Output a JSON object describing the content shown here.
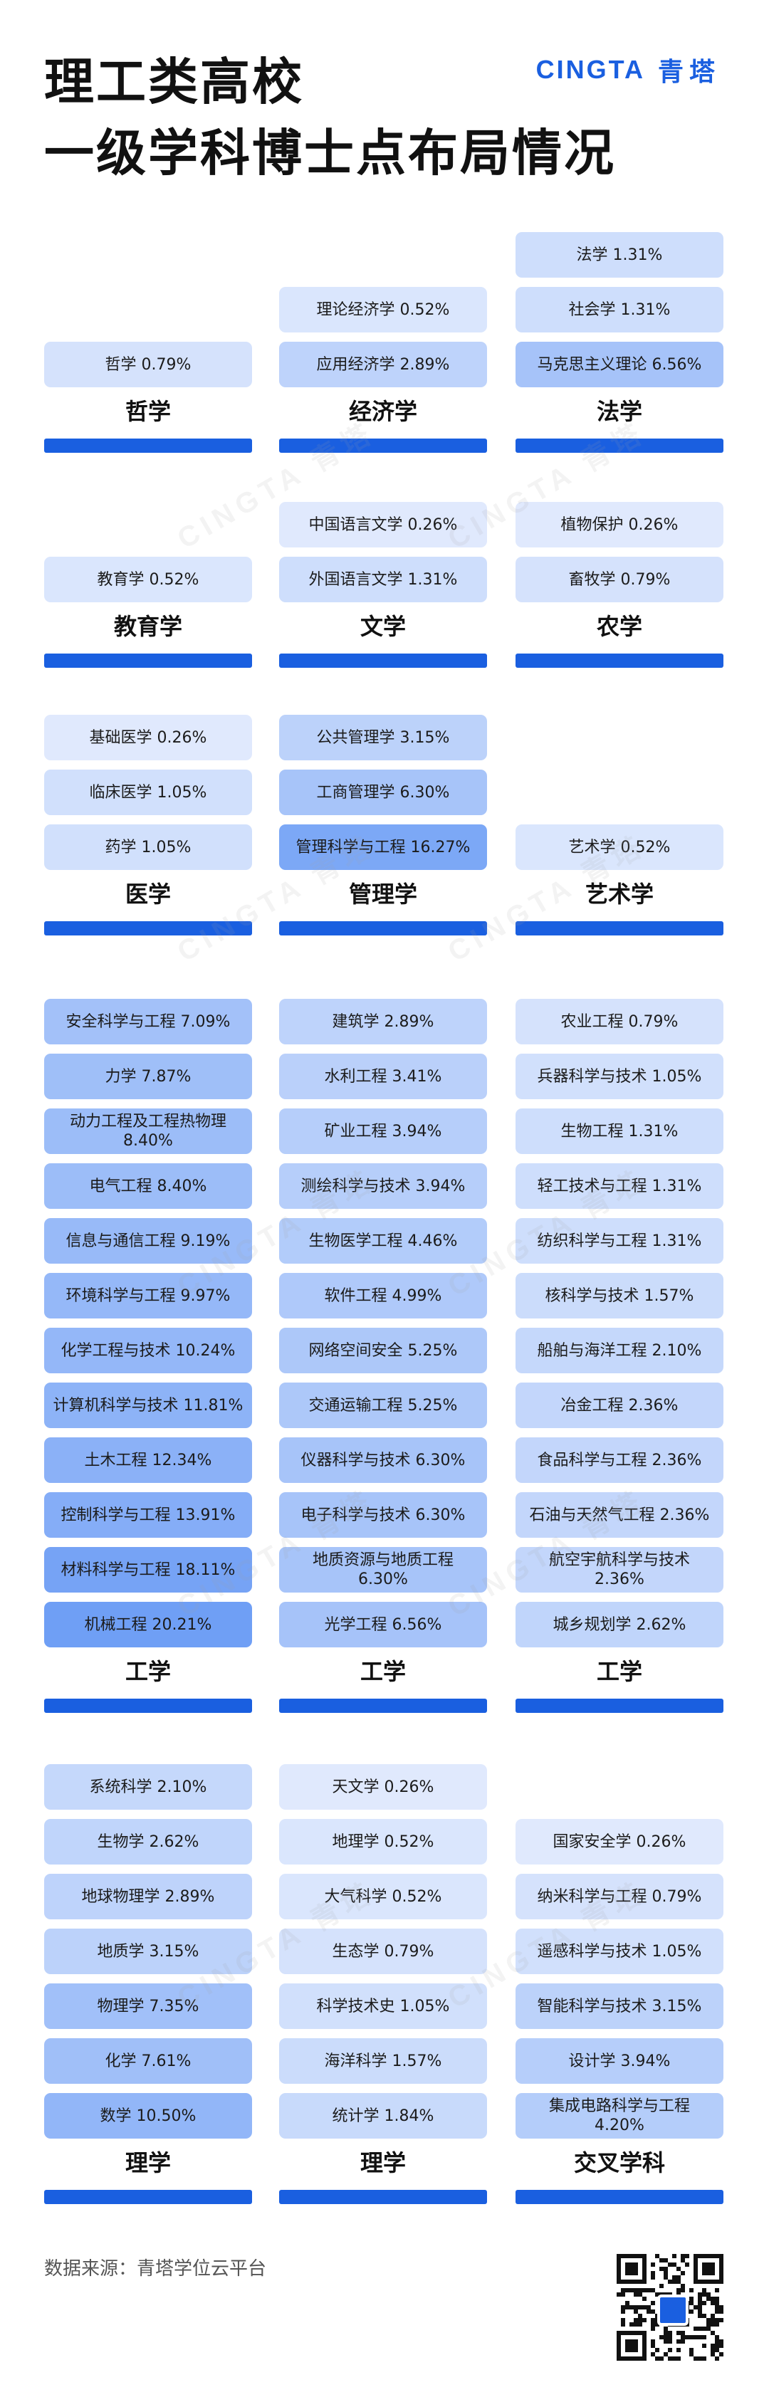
{
  "header": {
    "title_line1": "理工类高校",
    "title_line2": "一级学科博士点布局情况",
    "brand_en": "CINGTA",
    "brand_cn": "青塔",
    "watermark": "CINGTA 青塔"
  },
  "colors": {
    "accent": "#1a5fe0",
    "cell_lightest": "#eef3fe",
    "cell_darkest": "#6f9ff5"
  },
  "chart_data": {
    "type": "table",
    "title": "理工类高校 一级学科博士点布局情况",
    "value_unit": "%",
    "sections": [
      {
        "categories": [
          {
            "name": "哲学",
            "items": [
              {
                "label": "哲学 0.79%",
                "value": 0.79
              }
            ]
          },
          {
            "name": "经济学",
            "items": [
              {
                "label": "理论经济学 0.52%",
                "value": 0.52
              },
              {
                "label": "应用经济学 2.89%",
                "value": 2.89
              }
            ]
          },
          {
            "name": "法学",
            "items": [
              {
                "label": "法学 1.31%",
                "value": 1.31
              },
              {
                "label": "社会学 1.31%",
                "value": 1.31
              },
              {
                "label": "马克思主义理论 6.56%",
                "value": 6.56
              }
            ]
          }
        ]
      },
      {
        "categories": [
          {
            "name": "教育学",
            "items": [
              {
                "label": "教育学 0.52%",
                "value": 0.52
              }
            ]
          },
          {
            "name": "文学",
            "items": [
              {
                "label": "中国语言文学 0.26%",
                "value": 0.26
              },
              {
                "label": "外国语言文学 1.31%",
                "value": 1.31
              }
            ]
          },
          {
            "name": "农学",
            "items": [
              {
                "label": "植物保护 0.26%",
                "value": 0.26
              },
              {
                "label": "畜牧学 0.79%",
                "value": 0.79
              }
            ]
          }
        ]
      },
      {
        "categories": [
          {
            "name": "医学",
            "items": [
              {
                "label": "基础医学 0.26%",
                "value": 0.26
              },
              {
                "label": "临床医学 1.05%",
                "value": 1.05
              },
              {
                "label": "药学 1.05%",
                "value": 1.05
              }
            ]
          },
          {
            "name": "管理学",
            "items": [
              {
                "label": "公共管理学 3.15%",
                "value": 3.15
              },
              {
                "label": "工商管理学 6.30%",
                "value": 6.3
              },
              {
                "label": "管理科学与工程 16.27%",
                "value": 16.27
              }
            ]
          },
          {
            "name": "艺术学",
            "items": [
              {
                "label": "艺术学 0.52%",
                "value": 0.52
              }
            ]
          }
        ]
      },
      {
        "categories": [
          {
            "name": "工学",
            "items": [
              {
                "label": "安全科学与工程 7.09%",
                "value": 7.09
              },
              {
                "label": "力学 7.87%",
                "value": 7.87
              },
              {
                "label": "动力工程及工程热物理 8.40%",
                "value": 8.4
              },
              {
                "label": "电气工程 8.40%",
                "value": 8.4
              },
              {
                "label": "信息与通信工程 9.19%",
                "value": 9.19
              },
              {
                "label": "环境科学与工程 9.97%",
                "value": 9.97
              },
              {
                "label": "化学工程与技术 10.24%",
                "value": 10.24
              },
              {
                "label": "计算机科学与技术 11.81%",
                "value": 11.81
              },
              {
                "label": "土木工程 12.34%",
                "value": 12.34
              },
              {
                "label": "控制科学与工程 13.91%",
                "value": 13.91
              },
              {
                "label": "材料科学与工程 18.11%",
                "value": 18.11
              },
              {
                "label": "机械工程 20.21%",
                "value": 20.21
              }
            ]
          },
          {
            "name": "工学",
            "items": [
              {
                "label": "建筑学 2.89%",
                "value": 2.89
              },
              {
                "label": "水利工程 3.41%",
                "value": 3.41
              },
              {
                "label": "矿业工程 3.94%",
                "value": 3.94
              },
              {
                "label": "测绘科学与技术 3.94%",
                "value": 3.94
              },
              {
                "label": "生物医学工程 4.46%",
                "value": 4.46
              },
              {
                "label": "软件工程 4.99%",
                "value": 4.99
              },
              {
                "label": "网络空间安全 5.25%",
                "value": 5.25
              },
              {
                "label": "交通运输工程 5.25%",
                "value": 5.25
              },
              {
                "label": "仪器科学与技术 6.30%",
                "value": 6.3
              },
              {
                "label": "电子科学与技术 6.30%",
                "value": 6.3
              },
              {
                "label": "地质资源与地质工程 6.30%",
                "value": 6.3
              },
              {
                "label": "光学工程 6.56%",
                "value": 6.56
              }
            ]
          },
          {
            "name": "工学",
            "items": [
              {
                "label": "农业工程 0.79%",
                "value": 0.79
              },
              {
                "label": "兵器科学与技术 1.05%",
                "value": 1.05
              },
              {
                "label": "生物工程 1.31%",
                "value": 1.31
              },
              {
                "label": "轻工技术与工程 1.31%",
                "value": 1.31
              },
              {
                "label": "纺织科学与工程 1.31%",
                "value": 1.31
              },
              {
                "label": "核科学与技术 1.57%",
                "value": 1.57
              },
              {
                "label": "船舶与海洋工程 2.10%",
                "value": 2.1
              },
              {
                "label": "冶金工程 2.36%",
                "value": 2.36
              },
              {
                "label": "食品科学与工程 2.36%",
                "value": 2.36
              },
              {
                "label": "石油与天然气工程 2.36%",
                "value": 2.36
              },
              {
                "label": "航空宇航科学与技术 2.36%",
                "value": 2.36
              },
              {
                "label": "城乡规划学 2.62%",
                "value": 2.62
              }
            ]
          }
        ]
      },
      {
        "categories": [
          {
            "name": "理学",
            "items": [
              {
                "label": "系统科学 2.10%",
                "value": 2.1
              },
              {
                "label": "生物学 2.62%",
                "value": 2.62
              },
              {
                "label": "地球物理学 2.89%",
                "value": 2.89
              },
              {
                "label": "地质学 3.15%",
                "value": 3.15
              },
              {
                "label": "物理学 7.35%",
                "value": 7.35
              },
              {
                "label": "化学 7.61%",
                "value": 7.61
              },
              {
                "label": "数学 10.50%",
                "value": 10.5
              }
            ]
          },
          {
            "name": "理学",
            "items": [
              {
                "label": "天文学 0.26%",
                "value": 0.26
              },
              {
                "label": "地理学 0.52%",
                "value": 0.52
              },
              {
                "label": "大气科学 0.52%",
                "value": 0.52
              },
              {
                "label": "生态学 0.79%",
                "value": 0.79
              },
              {
                "label": "科学技术史 1.05%",
                "value": 1.05
              },
              {
                "label": "海洋科学 1.57%",
                "value": 1.57
              },
              {
                "label": "统计学 1.84%",
                "value": 1.84
              }
            ]
          },
          {
            "name": "交叉学科",
            "items": [
              {
                "label": "国家安全学 0.26%",
                "value": 0.26
              },
              {
                "label": "纳米科学与工程 0.79%",
                "value": 0.79
              },
              {
                "label": "遥感科学与技术 1.05%",
                "value": 1.05
              },
              {
                "label": "智能科学与技术 3.15%",
                "value": 3.15
              },
              {
                "label": "设计学 3.94%",
                "value": 3.94
              },
              {
                "label": "集成电路科学与工程 4.20%",
                "value": 4.2
              }
            ]
          }
        ]
      }
    ]
  },
  "footer": {
    "source": "数据来源：青塔学位云平台",
    "qr_label": "CINGTA"
  }
}
